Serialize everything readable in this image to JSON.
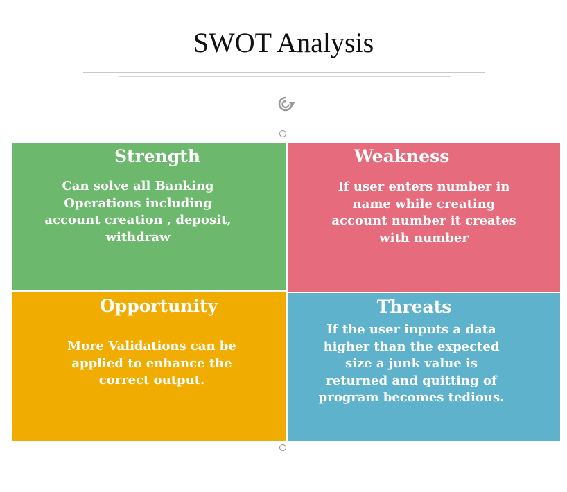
{
  "title": "SWOT Analysis",
  "quadrants": {
    "strength": {
      "title": "Strength",
      "text": "Can solve all Banking\nOperations including\naccount creation , deposit,\nwithdraw",
      "color": "#6cb86d"
    },
    "weakness": {
      "title": "Weakness",
      "text": "If user enters number in\nname while creating\naccount number it creates\nwith number",
      "color": "#e56b7d"
    },
    "opportunity": {
      "title": "Opportunity",
      "text": "More Validations can be\napplied to enhance the\ncorrect output.",
      "color": "#f0ac00"
    },
    "threats": {
      "title": "Threats",
      "text": "If  the user inputs a data\nhigher than the expected\nsize a junk value is\nreturned and quitting of\nprogram becomes tedious.",
      "color": "#5fb2cb"
    }
  },
  "icons": {
    "rotate": "rotate-icon",
    "handle": "selection-handle"
  }
}
